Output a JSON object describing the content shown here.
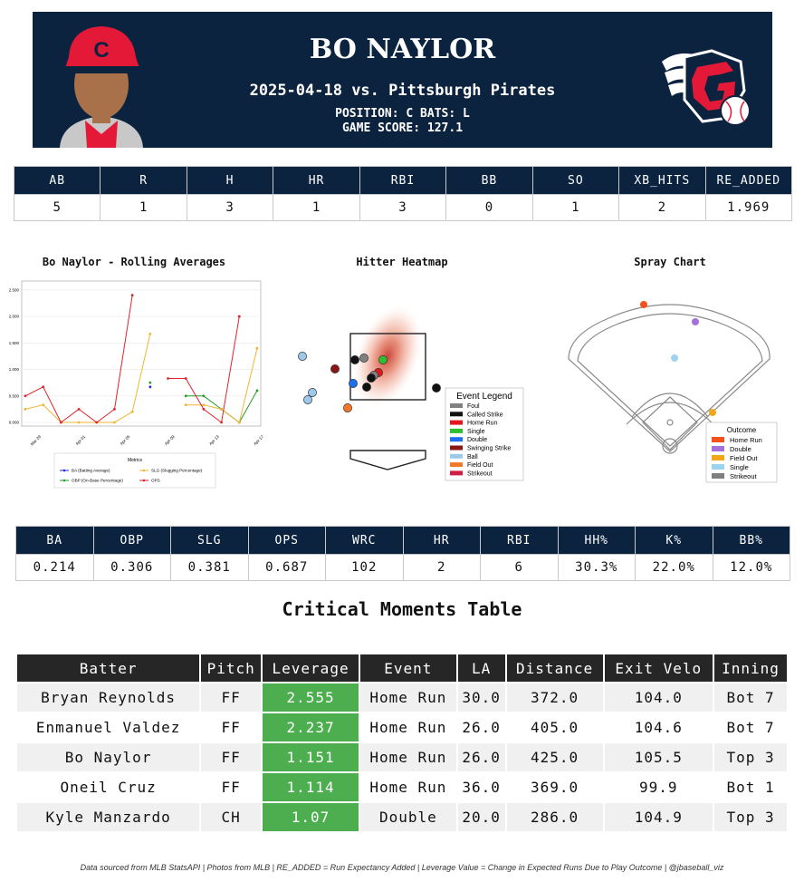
{
  "header": {
    "player_name": "BO NAYLOR",
    "game_line": "2025-04-18 vs. Pittsburgh Pirates",
    "position_line": "POSITION: C BATS: L",
    "score_line": "GAME SCORE: 127.1",
    "logo_icon": "guardians-logo-icon",
    "photo_icon": "player-headshot-icon",
    "colors": {
      "navy": "#0c2340",
      "red": "#e31937"
    }
  },
  "game_stats": {
    "headers": [
      "AB",
      "R",
      "H",
      "HR",
      "RBI",
      "BB",
      "SO",
      "XB_HITS",
      "RE_ADDED"
    ],
    "values": [
      "5",
      "1",
      "3",
      "1",
      "3",
      "0",
      "1",
      "2",
      "1.969"
    ]
  },
  "season_stats": {
    "headers": [
      "BA",
      "OBP",
      "SLG",
      "OPS",
      "WRC",
      "HR",
      "RBI",
      "HH%",
      "K%",
      "BB%"
    ],
    "values": [
      "0.214",
      "0.306",
      "0.381",
      "0.687",
      "102",
      "2",
      "6",
      "30.3%",
      "22.0%",
      "12.0%"
    ]
  },
  "chart_data": [
    {
      "type": "line",
      "title": "Bo Naylor - Rolling Averages",
      "x_ticks": [
        "Mar 29",
        "Apr 01",
        "Apr 05",
        "Apr 09",
        "Apr 13",
        "Apr 17"
      ],
      "y_ticks": [
        "0.000",
        "0.500",
        "1.000",
        "1.500",
        "2.000",
        "2.500"
      ],
      "ylim": [
        0,
        2.6
      ],
      "legend_title": "Metrics",
      "legend_placement": "bottom",
      "series": [
        {
          "name": "BA (Batting Average)",
          "color": "#1f2bd4",
          "values": [
            null,
            null,
            null,
            null,
            null,
            null,
            null,
            0.67,
            null,
            null,
            null,
            null,
            null,
            null,
            null,
            null,
            null
          ]
        },
        {
          "name": "OBP (On-Base Percentage)",
          "color": "#2a9a2a",
          "values": [
            null,
            null,
            null,
            null,
            null,
            null,
            null,
            0.75,
            null,
            0.5,
            0.5,
            0.25,
            0,
            0.6
          ]
        },
        {
          "name": "SLG (Slugging Percentage)",
          "color": "#f2b531",
          "values": [
            0.25,
            0.33,
            0,
            0,
            0,
            0,
            0.2,
            1.67,
            null,
            0.33,
            0.33,
            0.25,
            0,
            1.4
          ]
        },
        {
          "name": "OPS",
          "color": "#e3222a",
          "values": [
            0.5,
            0.67,
            0,
            0.25,
            0,
            0.25,
            2.4,
            null,
            0.83,
            0.83,
            0.25,
            0,
            2.0
          ]
        }
      ]
    },
    {
      "type": "scatter",
      "title": "Hitter Heatmap",
      "legend_title": "Event Legend",
      "legend_placement": "right",
      "legend": [
        {
          "label": "Foul",
          "color": "#808080"
        },
        {
          "label": "Called Strike",
          "color": "#111111"
        },
        {
          "label": "Home Run",
          "color": "#e3161c"
        },
        {
          "label": "Single",
          "color": "#2fbf2f"
        },
        {
          "label": "Double",
          "color": "#1e6ff0"
        },
        {
          "label": "Swinging Strike",
          "color": "#8b1414"
        },
        {
          "label": "Ball",
          "color": "#9cc9ea"
        },
        {
          "label": "Field Out",
          "color": "#f07a2a"
        },
        {
          "label": "Strikeout",
          "color": "#d01f45"
        }
      ]
    },
    {
      "type": "scatter",
      "title": "Spray Chart",
      "legend_title": "Outcome",
      "legend_placement": "bottom-right",
      "legend": [
        {
          "label": "Home Run",
          "color": "#f4511e"
        },
        {
          "label": "Double",
          "color": "#a371d9"
        },
        {
          "label": "Field Out",
          "color": "#f2a71b"
        },
        {
          "label": "Single",
          "color": "#9ed3ee"
        },
        {
          "label": "Strikeout",
          "color": "#7f7f7f"
        }
      ]
    }
  ],
  "critical": {
    "title": "Critical Moments Table",
    "headers": [
      "Batter",
      "Pitch",
      "Leverage",
      "Event",
      "LA",
      "Distance",
      "Exit Velo",
      "Inning"
    ],
    "rows": [
      [
        "Bryan Reynolds",
        "FF",
        "2.555",
        "Home Run",
        "30.0",
        "372.0",
        "104.0",
        "Bot 7"
      ],
      [
        "Enmanuel Valdez",
        "FF",
        "2.237",
        "Home Run",
        "26.0",
        "405.0",
        "104.6",
        "Bot 7"
      ],
      [
        "Bo Naylor",
        "FF",
        "1.151",
        "Home Run",
        "26.0",
        "425.0",
        "105.5",
        "Top 3"
      ],
      [
        "Oneil Cruz",
        "FF",
        "1.114",
        "Home Run",
        "36.0",
        "369.0",
        "99.9",
        "Bot 1"
      ],
      [
        "Kyle Manzardo",
        "CH",
        "1.07",
        "Double",
        "20.0",
        "286.0",
        "104.9",
        "Top 3"
      ]
    ]
  },
  "footer": "Data sourced from MLB StatsAPI | Photos from MLB | RE_ADDED = Run Expectancy Added | Leverage Value = Change in Expected Runs Due to Play Outcome | @jbaseball_viz"
}
